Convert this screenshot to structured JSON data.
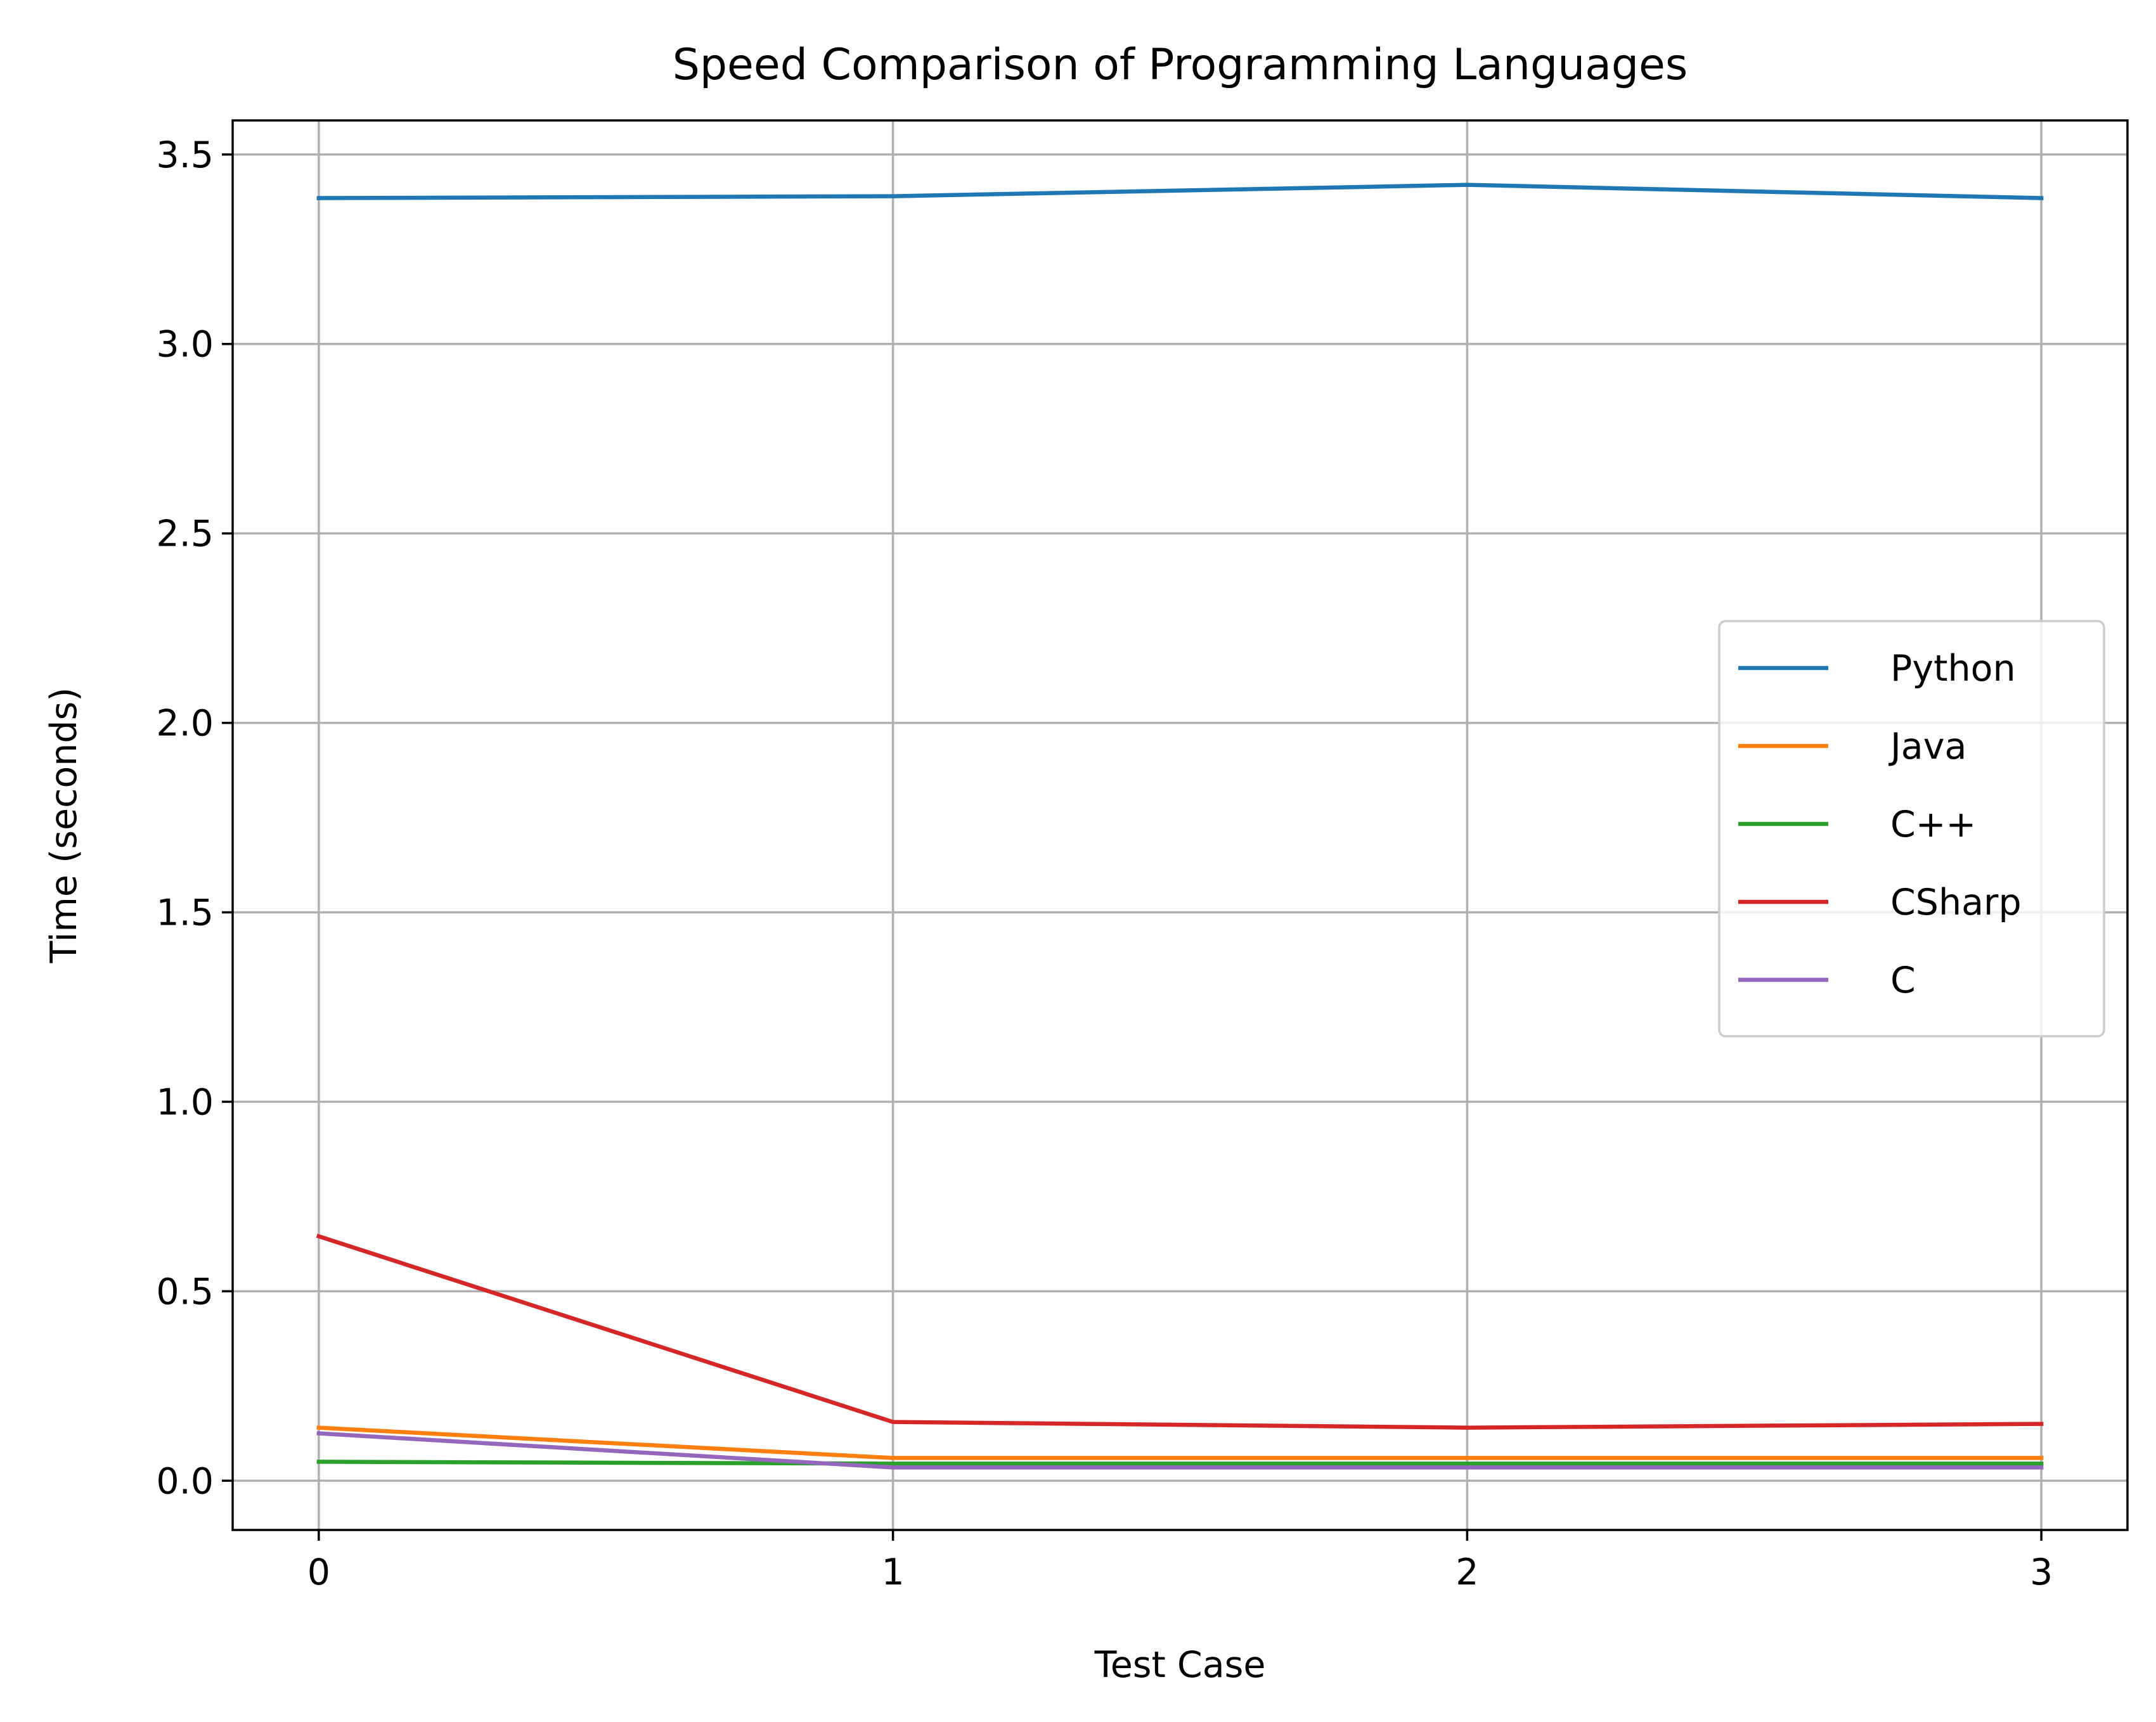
{
  "chart_data": {
    "type": "line",
    "title": "Speed Comparison of Programming Languages",
    "xlabel": "Test Case",
    "ylabel": "Time (seconds)",
    "x": [
      0,
      1,
      2,
      3
    ],
    "x_ticks": [
      "0",
      "1",
      "2",
      "3"
    ],
    "y_ticks": [
      "0.0",
      "0.5",
      "1.0",
      "1.5",
      "2.0",
      "2.5",
      "3.0",
      "3.5"
    ],
    "xlim": [
      -0.15,
      3.15
    ],
    "ylim": [
      -0.13,
      3.59
    ],
    "grid": true,
    "legend_position": "center-right",
    "series": [
      {
        "name": "Python",
        "color": "#1f77b4",
        "values": [
          3.385,
          3.39,
          3.42,
          3.385
        ]
      },
      {
        "name": "Java",
        "color": "#ff7f0e",
        "values": [
          0.14,
          0.06,
          0.06,
          0.06
        ]
      },
      {
        "name": "C++",
        "color": "#2ca02c",
        "values": [
          0.05,
          0.045,
          0.045,
          0.045
        ]
      },
      {
        "name": "CSharp",
        "color": "#d62728",
        "values": [
          0.645,
          0.155,
          0.14,
          0.15
        ]
      },
      {
        "name": "C",
        "color": "#9467bd",
        "values": [
          0.125,
          0.035,
          0.035,
          0.035
        ]
      }
    ]
  }
}
